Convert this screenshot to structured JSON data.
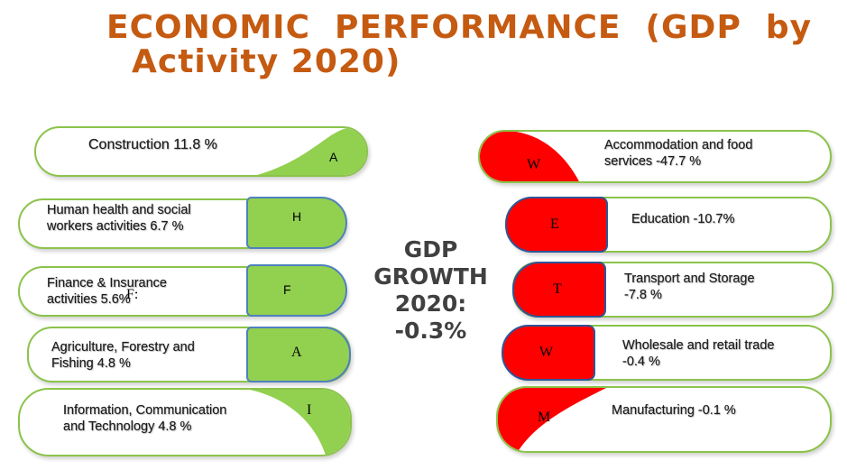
{
  "title": {
    "line1": "ECONOMIC  PERFORMANCE  (GDP  by",
    "line2": "Activity 2020)"
  },
  "center": {
    "line1": "GDP",
    "line2": "GROWTH",
    "line3": "2020:",
    "line4": "-0.3%"
  },
  "left": [
    {
      "label": "Construction 11.8 %",
      "letter": "A"
    },
    {
      "label": "Human health and social workers activities  6.7 %",
      "letter": "H"
    },
    {
      "label": "Finance & Insurance activities  5.6%",
      "letter": "F"
    },
    {
      "label": "Agriculture, Forestry and Fishing 4.8 %",
      "letter": "A"
    },
    {
      "label": "Information, Communication and Technology 4.8 %",
      "letter": "I"
    }
  ],
  "right": [
    {
      "label": "Accommodation and food services -47.7 %",
      "letter": "W"
    },
    {
      "label": "Education  -10.7%",
      "letter": "E"
    },
    {
      "label": "Transport and Storage -7.8 %",
      "letter": "T"
    },
    {
      "label": "Wholesale and retail trade  -0.4 %",
      "letter": "W"
    },
    {
      "label": "Manufacturing -0.1 %",
      "letter": "M"
    }
  ],
  "overlay_glyph": "F:",
  "colors": {
    "title": "#C55A11",
    "positive": "#92D050",
    "negative": "#FF0000",
    "border": "#8BC34A"
  }
}
